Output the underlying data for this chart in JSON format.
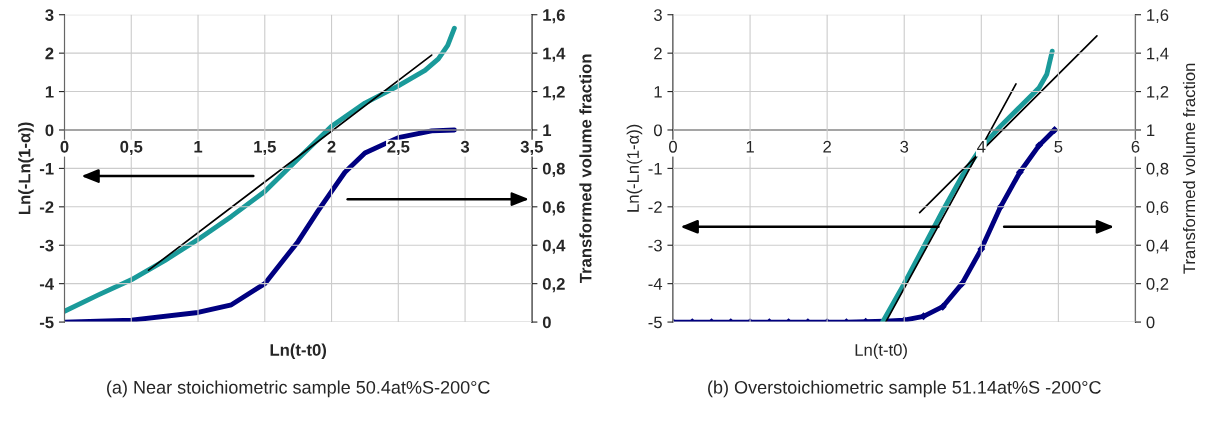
{
  "chart_data": [
    {
      "type": "line",
      "title": "(a) Near stoichiometric sample 50.4at%S-200°C",
      "xlabel": "Ln(t-t0)",
      "ylabel": "Ln(-Ln(1-α))",
      "y2label": "Transformed volume fraction",
      "xlim": [
        0,
        3.5
      ],
      "xticks": [
        0,
        {
          "value": 0.5,
          "label": "0,5"
        },
        1,
        {
          "value": 1.5,
          "label": "1,5"
        },
        2,
        {
          "value": 2.5,
          "label": "2,5"
        },
        3,
        {
          "value": 3.5,
          "label": "3,5"
        }
      ],
      "ylim": [
        -5,
        3
      ],
      "yticks": [
        -5,
        -4,
        -3,
        -2,
        -1,
        0,
        1,
        2,
        3
      ],
      "y2lim": [
        0,
        1.6
      ],
      "y2ticks": [
        0,
        {
          "value": 0.2,
          "label": "0,2"
        },
        {
          "value": 0.4,
          "label": "0,4"
        },
        {
          "value": 0.6,
          "label": "0,6"
        },
        {
          "value": 0.8,
          "label": "0,8"
        },
        1,
        {
          "value": 1.2,
          "label": "1,2"
        },
        {
          "value": 1.4,
          "label": "1,4"
        },
        {
          "value": 1.6,
          "label": "1,6"
        }
      ],
      "grid": true,
      "legend": false,
      "series": [
        {
          "color": "#1a9a9a",
          "x": [
            0,
            0.25,
            0.5,
            0.75,
            1.0,
            1.25,
            1.5,
            1.75,
            2.0,
            2.25,
            2.5,
            2.7,
            2.8,
            2.87,
            2.92
          ],
          "values": [
            -4.72,
            -4.3,
            -3.9,
            -3.4,
            -2.85,
            -2.25,
            -1.6,
            -0.75,
            0.1,
            0.7,
            1.15,
            1.55,
            1.85,
            2.2,
            2.65
          ]
        },
        {
          "color": "#000080",
          "axis": "y2",
          "x": [
            0,
            0.5,
            1.0,
            1.25,
            1.5,
            1.75,
            1.9,
            2.0,
            2.1,
            2.25,
            2.5,
            2.75,
            2.92
          ],
          "values": [
            0,
            0.01,
            0.05,
            0.09,
            0.2,
            0.42,
            0.58,
            0.68,
            0.78,
            0.88,
            0.96,
            0.995,
            1.0
          ]
        },
        {
          "color": "#000000",
          "x": [
            0.63,
            2.75
          ],
          "values": [
            -3.65,
            1.95
          ]
        }
      ]
    },
    {
      "type": "line",
      "title": "(b) Overstoichiometric sample 51.14at%S -200°C",
      "xlabel": "Ln(t-t0)",
      "ylabel": "Ln(-Ln(1-α))",
      "y2label": "Transformed volume fraction",
      "xlim": [
        0,
        6
      ],
      "xticks": [
        0,
        1,
        2,
        3,
        4,
        5,
        6
      ],
      "ylim": [
        -5,
        3
      ],
      "yticks": [
        -5,
        -4,
        -3,
        -2,
        -1,
        0,
        1,
        2,
        3
      ],
      "y2lim": [
        0,
        1.6
      ],
      "y2ticks": [
        0,
        {
          "value": 0.2,
          "label": "0,2"
        },
        {
          "value": 0.4,
          "label": "0,4"
        },
        {
          "value": 0.6,
          "label": "0,6"
        },
        {
          "value": 0.8,
          "label": "0,8"
        },
        1,
        {
          "value": 1.2,
          "label": "1,2"
        },
        {
          "value": 1.4,
          "label": "1,4"
        },
        {
          "value": 1.6,
          "label": "1,6"
        }
      ],
      "grid": true,
      "legend": false,
      "series": [
        {
          "color": "#1a9a9a",
          "x": [
            2.72,
            3.0,
            3.25,
            3.5,
            3.75,
            4.0,
            4.25,
            4.5,
            4.75,
            4.85,
            4.92
          ],
          "values": [
            -5,
            -4.0,
            -3.05,
            -2.1,
            -1.2,
            -0.45,
            0.1,
            0.6,
            1.1,
            1.45,
            2.05
          ]
        },
        {
          "color": "#000080",
          "axis": "y2",
          "marker": "diamond",
          "x": [
            0,
            0.25,
            0.5,
            0.75,
            1.0,
            1.25,
            1.5,
            1.75,
            2.0,
            2.25,
            2.5,
            2.75,
            3.0,
            3.25,
            3.5,
            3.75,
            4.0,
            4.25,
            4.5,
            4.75,
            4.95
          ],
          "values": [
            0,
            0,
            0,
            0,
            0,
            0,
            0,
            0,
            0,
            0,
            0.002,
            0.005,
            0.01,
            0.03,
            0.08,
            0.2,
            0.38,
            0.6,
            0.78,
            0.92,
            1.0
          ]
        },
        {
          "color": "#000000",
          "x": [
            2.76,
            4.45
          ],
          "values": [
            -5,
            1.2
          ]
        },
        {
          "color": "#000000",
          "x": [
            3.2,
            5.5
          ],
          "values": [
            -2.15,
            2.45
          ]
        }
      ]
    }
  ]
}
